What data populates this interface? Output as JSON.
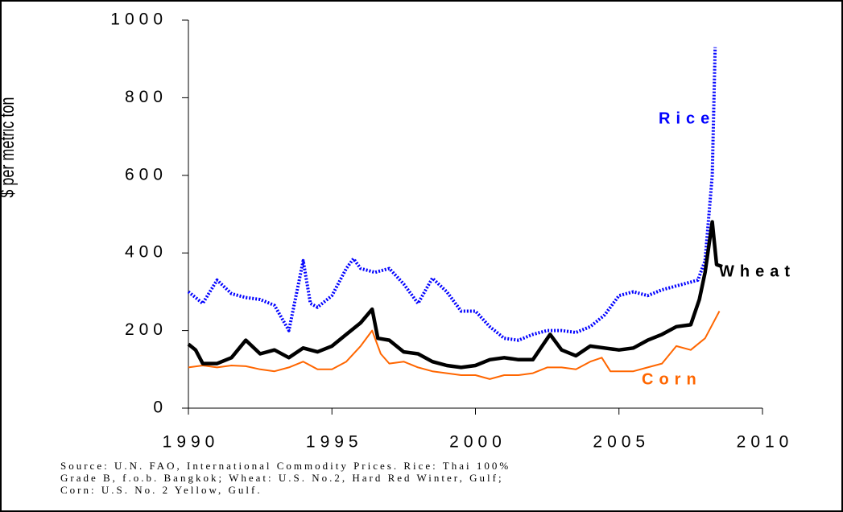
{
  "chart_data": {
    "type": "line",
    "y_label": "$ per metric ton",
    "xlim": [
      1990,
      2010
    ],
    "xticks": [
      1990,
      1995,
      2000,
      2005,
      2010
    ],
    "ylim": [
      0,
      1000
    ],
    "yticks": [
      0,
      200,
      400,
      600,
      800,
      1000
    ],
    "series": [
      {
        "name": "Rice",
        "color": "#0000ff",
        "x": [
          1990,
          1990.5,
          1991,
          1991.5,
          1992,
          1992.5,
          1993,
          1993.5,
          1994,
          1994.25,
          1994.5,
          1995,
          1995.5,
          1995.75,
          1996,
          1996.5,
          1997,
          1997.5,
          1998,
          1998.5,
          1999,
          1999.5,
          2000,
          2000.5,
          2001,
          2001.5,
          2002,
          2002.5,
          2003,
          2003.5,
          2004,
          2004.5,
          2005,
          2005.5,
          2006,
          2006.5,
          2007,
          2007.5,
          2007.75,
          2008,
          2008.25,
          2008.35
        ],
        "values": [
          300,
          270,
          330,
          295,
          285,
          280,
          265,
          200,
          380,
          270,
          260,
          290,
          360,
          385,
          360,
          350,
          360,
          320,
          270,
          335,
          300,
          250,
          250,
          210,
          180,
          175,
          190,
          200,
          200,
          195,
          210,
          240,
          290,
          300,
          290,
          305,
          315,
          325,
          330,
          380,
          600,
          930
        ]
      },
      {
        "name": "Wheat",
        "color": "#000000",
        "x": [
          1990,
          1990.25,
          1990.5,
          1991,
          1991.5,
          1992,
          1992.5,
          1993,
          1993.5,
          1994,
          1994.5,
          1995,
          1995.5,
          1996,
          1996.4,
          1996.6,
          1997,
          1997.5,
          1998,
          1998.5,
          1999,
          1999.5,
          2000,
          2000.5,
          2001,
          2001.5,
          2002,
          2002.6,
          2003,
          2003.5,
          2004,
          2004.5,
          2005,
          2005.5,
          2006,
          2006.5,
          2007,
          2007.5,
          2007.8,
          2008,
          2008.25,
          2008.4,
          2008.6
        ],
        "values": [
          165,
          150,
          115,
          115,
          130,
          175,
          140,
          150,
          130,
          155,
          145,
          160,
          190,
          220,
          255,
          180,
          175,
          145,
          140,
          120,
          110,
          105,
          110,
          125,
          130,
          125,
          125,
          190,
          150,
          135,
          160,
          155,
          150,
          155,
          175,
          190,
          210,
          215,
          280,
          350,
          480,
          370,
          365
        ]
      },
      {
        "name": "Corn",
        "color": "#ff6600",
        "x": [
          1990,
          1990.5,
          1991,
          1991.5,
          1992,
          1992.5,
          1993,
          1993.5,
          1994,
          1994.5,
          1995,
          1995.5,
          1996,
          1996.4,
          1996.7,
          1997,
          1997.5,
          1998,
          1998.5,
          1999,
          1999.5,
          2000,
          2000.5,
          2001,
          2001.5,
          2002,
          2002.5,
          2003,
          2003.5,
          2004,
          2004.4,
          2004.7,
          2005,
          2005.5,
          2006,
          2006.5,
          2007,
          2007.5,
          2008,
          2008.5
        ],
        "values": [
          105,
          110,
          105,
          110,
          108,
          100,
          95,
          105,
          120,
          100,
          100,
          120,
          160,
          200,
          140,
          115,
          120,
          105,
          95,
          90,
          85,
          85,
          75,
          85,
          85,
          90,
          105,
          105,
          100,
          120,
          130,
          95,
          95,
          95,
          105,
          115,
          160,
          150,
          180,
          250
        ]
      }
    ],
    "source": [
      "Source: U.N. FAO, International Commodity Prices. Rice: Thai 100%",
      "Grade B, f.o.b. Bangkok; Wheat: U.S. No.2, Hard Red Winter, Gulf;",
      "Corn: U.S. No. 2 Yellow, Gulf."
    ]
  }
}
